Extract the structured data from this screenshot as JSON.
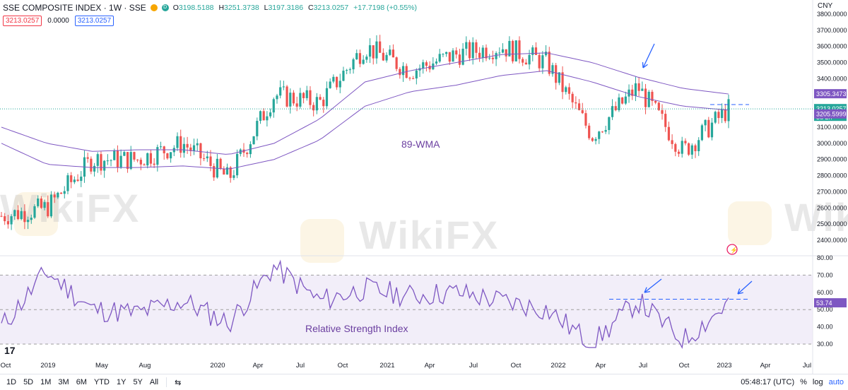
{
  "header": {
    "symbol": "SSE COMPOSITE INDEX · 1W · SSE",
    "open_label": "O",
    "open": "3198.5188",
    "high_label": "H",
    "high": "3251.3738",
    "low_label": "L",
    "low": "3197.3186",
    "close_label": "C",
    "close": "3213.0257",
    "change": "+17.7198 (+0.55%)",
    "dot1_color": "#f7a600",
    "dot2_label": "D",
    "dot2_color": "#26a69a"
  },
  "quotes": {
    "sell": "3213.0257",
    "spread": "0.0000",
    "buy": "3213.0257"
  },
  "currency": "CNY",
  "price_axis": {
    "ticks": [
      "3800.0000",
      "3700.0000",
      "3600.0000",
      "3500.0000",
      "3400.0000",
      "3300.0000",
      "3200.0000",
      "3100.0000",
      "3000.0000",
      "2900.0000",
      "2800.0000",
      "2700.0000",
      "2600.0000",
      "2500.0000",
      "2400.0000"
    ],
    "tag_upper_wma": "3305.3473",
    "tag_price": "3213.0257",
    "tag_time": "3d 2h",
    "tag_lower_wma": "3205.5999"
  },
  "rsi_axis": {
    "ticks": [
      "80.00",
      "70.00",
      "60.00",
      "50.00",
      "40.00",
      "30.00"
    ],
    "tag": "53.74"
  },
  "time_axis": [
    "Oct",
    "2019",
    "May",
    "Aug",
    "2020",
    "Apr",
    "Jul",
    "Oct",
    "2021",
    "Apr",
    "Jul",
    "Oct",
    "2022",
    "Apr",
    "Jul",
    "Oct",
    "2023",
    "Apr",
    "Jul"
  ],
  "annotations": {
    "wma_label": "89-WMA",
    "rsi_label": "Relative Strength Index"
  },
  "watermark": {
    "text": "WikiFX"
  },
  "toolbar": {
    "ranges": [
      "1D",
      "5D",
      "1M",
      "3M",
      "6M",
      "YTD",
      "1Y",
      "5Y",
      "All"
    ],
    "time": "05:48:17 (UTC)",
    "percent": "%",
    "log": "log",
    "auto": "auto"
  },
  "colors": {
    "up": "#26a69a",
    "down": "#ef5350",
    "wma": "#7e57c2",
    "rsi": "#7e57c2",
    "rsi_band": "#ede7f6",
    "accent": "#2962ff"
  },
  "chart_data": {
    "type": "candlestick",
    "title": "SSE COMPOSITE INDEX",
    "interval": "1W",
    "ylim": [
      2400,
      3800
    ],
    "x": [
      "2018-10",
      "2019-01",
      "2019-05",
      "2019-08",
      "2020-01",
      "2020-04",
      "2020-07",
      "2020-10",
      "2021-01",
      "2021-04",
      "2021-07",
      "2021-10",
      "2022-01",
      "2022-04",
      "2022-07",
      "2022-10",
      "2023-01"
    ],
    "close": [
      2550,
      2600,
      2900,
      2900,
      3000,
      2780,
      3300,
      3250,
      3600,
      3450,
      3550,
      3600,
      3500,
      3050,
      3350,
      2950,
      3213.0257
    ],
    "upper_wma": [
      3100,
      3000,
      2950,
      2960,
      2960,
      2930,
      3000,
      3150,
      3380,
      3450,
      3500,
      3550,
      3560,
      3500,
      3410,
      3340,
      3305.3473
    ],
    "lower_wma": [
      3000,
      2870,
      2850,
      2850,
      2860,
      2840,
      2900,
      3020,
      3230,
      3320,
      3360,
      3420,
      3450,
      3380,
      3290,
      3230,
      3205.5999
    ],
    "rsi": {
      "name": "Relative Strength Index",
      "ylim": [
        25,
        80
      ],
      "levels": [
        70,
        50,
        30
      ],
      "last": 53.74,
      "values": [
        40,
        72,
        50,
        48,
        55,
        42,
        75,
        55,
        62,
        58,
        60,
        55,
        50,
        30,
        55,
        32,
        53.74
      ]
    }
  }
}
